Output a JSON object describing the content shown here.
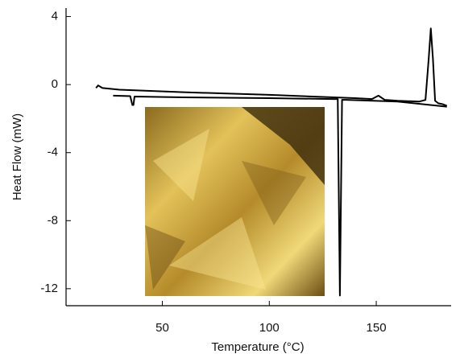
{
  "chart_data": {
    "type": "line",
    "x_label": "Temperature (°C)",
    "y_label": "Heat Flow (mW)",
    "xlim": [
      5,
      185
    ],
    "ylim": [
      -13,
      4.5
    ],
    "xticks": [
      50,
      100,
      150
    ],
    "yticks": [
      4,
      0,
      -4,
      -8,
      -12
    ],
    "grid": false,
    "series": [
      {
        "color": "#000000",
        "x": [
          19,
          20,
          22,
          30,
          60,
          100,
          140,
          148,
          151,
          154,
          160,
          170,
          173,
          174.5,
          175.5,
          176.5,
          177.5,
          179,
          181,
          183
        ],
        "values": [
          -0.2,
          -0.05,
          -0.2,
          -0.3,
          -0.45,
          -0.6,
          -0.8,
          -0.85,
          -0.65,
          -0.9,
          -0.95,
          -1.0,
          -0.9,
          1.5,
          3.3,
          1.5,
          -0.95,
          -1.1,
          -1.15,
          -1.25
        ]
      },
      {
        "color": "#000000",
        "x": [
          27,
          35,
          36,
          36.5,
          37,
          60,
          100,
          130,
          132,
          133,
          134,
          136,
          160,
          183
        ],
        "values": [
          -0.65,
          -0.68,
          -1.2,
          -1.2,
          -0.7,
          -0.75,
          -0.8,
          -0.85,
          -0.85,
          -12.4,
          -0.9,
          -0.9,
          -1.0,
          -1.3
        ]
      }
    ]
  }
}
